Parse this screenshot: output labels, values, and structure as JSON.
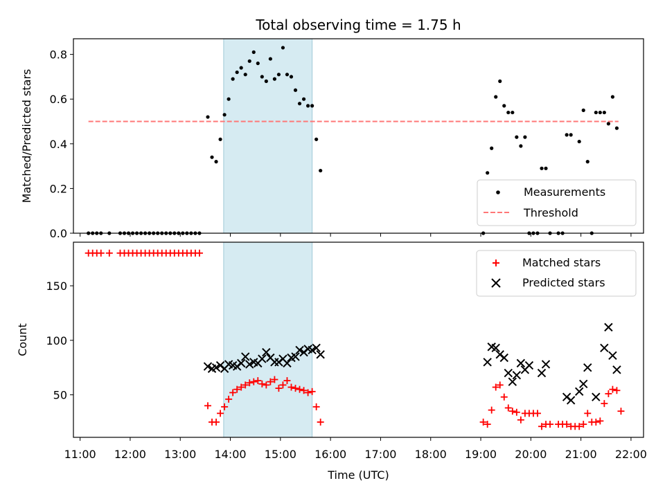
{
  "chart_data": [
    {
      "type": "scatter",
      "title": "Total observing time = 1.75 h",
      "xlabel": "",
      "ylabel": "Matched/Predicted stars",
      "xlim": [
        "10:52",
        "22:15"
      ],
      "ylim": [
        0,
        0.87
      ],
      "yticks": [
        0.0,
        0.2,
        0.4,
        0.6,
        0.8
      ],
      "ytick_labels": [
        "0.0",
        "0.2",
        "0.4",
        "0.6",
        "0.8"
      ],
      "grid": false,
      "legend_position": "lower-right",
      "shaded_span": [
        "13:52",
        "15:38"
      ],
      "series": [
        {
          "name": "Measurements",
          "marker": "dot",
          "color": "#000000",
          "points": [
            [
              "11:10",
              0
            ],
            [
              "11:15",
              0
            ],
            [
              "11:20",
              0
            ],
            [
              "11:25",
              0
            ],
            [
              "11:35",
              0
            ],
            [
              "11:48",
              0
            ],
            [
              "11:53",
              0
            ],
            [
              "11:58",
              0
            ],
            [
              "12:03",
              0
            ],
            [
              "12:08",
              0
            ],
            [
              "12:13",
              0
            ],
            [
              "12:18",
              0
            ],
            [
              "12:23",
              0
            ],
            [
              "12:28",
              0
            ],
            [
              "12:33",
              0
            ],
            [
              "12:38",
              0
            ],
            [
              "12:43",
              0
            ],
            [
              "12:48",
              0
            ],
            [
              "12:53",
              0
            ],
            [
              "12:58",
              0
            ],
            [
              "13:03",
              0
            ],
            [
              "13:08",
              0
            ],
            [
              "13:13",
              0
            ],
            [
              "13:18",
              0
            ],
            [
              "13:23",
              0
            ],
            [
              "13:33",
              0.52
            ],
            [
              "13:38",
              0.34
            ],
            [
              "13:43",
              0.32
            ],
            [
              "13:48",
              0.42
            ],
            [
              "13:53",
              0.53
            ],
            [
              "13:58",
              0.6
            ],
            [
              "14:03",
              0.69
            ],
            [
              "14:08",
              0.72
            ],
            [
              "14:13",
              0.74
            ],
            [
              "14:18",
              0.71
            ],
            [
              "14:23",
              0.77
            ],
            [
              "14:28",
              0.81
            ],
            [
              "14:33",
              0.76
            ],
            [
              "14:38",
              0.7
            ],
            [
              "14:43",
              0.68
            ],
            [
              "14:48",
              0.78
            ],
            [
              "14:53",
              0.69
            ],
            [
              "14:58",
              0.71
            ],
            [
              "15:03",
              0.83
            ],
            [
              "15:08",
              0.71
            ],
            [
              "15:13",
              0.7
            ],
            [
              "15:18",
              0.64
            ],
            [
              "15:23",
              0.58
            ],
            [
              "15:28",
              0.6
            ],
            [
              "15:33",
              0.57
            ],
            [
              "15:38",
              0.57
            ],
            [
              "15:43",
              0.42
            ],
            [
              "15:48",
              0.28
            ],
            [
              "19:03",
              0
            ],
            [
              "19:08",
              0.27
            ],
            [
              "19:13",
              0.38
            ],
            [
              "19:18",
              0.61
            ],
            [
              "19:23",
              0.68
            ],
            [
              "19:28",
              0.57
            ],
            [
              "19:33",
              0.54
            ],
            [
              "19:38",
              0.54
            ],
            [
              "19:43",
              0.43
            ],
            [
              "19:48",
              0.39
            ],
            [
              "19:53",
              0.43
            ],
            [
              "19:58",
              0
            ],
            [
              "20:03",
              0
            ],
            [
              "20:08",
              0
            ],
            [
              "20:13",
              0.29
            ],
            [
              "20:18",
              0.29
            ],
            [
              "20:23",
              0
            ],
            [
              "20:33",
              0
            ],
            [
              "20:38",
              0
            ],
            [
              "20:43",
              0.44
            ],
            [
              "20:48",
              0.44
            ],
            [
              "20:58",
              0.41
            ],
            [
              "21:03",
              0.55
            ],
            [
              "21:08",
              0.32
            ],
            [
              "21:13",
              0
            ],
            [
              "21:18",
              0.54
            ],
            [
              "21:23",
              0.54
            ],
            [
              "21:28",
              0.54
            ],
            [
              "21:33",
              0.49
            ],
            [
              "21:38",
              0.61
            ],
            [
              "21:43",
              0.47
            ]
          ]
        },
        {
          "name": "Threshold",
          "marker": "dashed-line",
          "color": "#ff7777",
          "points": [
            [
              "11:10",
              0.5
            ],
            [
              "21:45",
              0.5
            ]
          ]
        }
      ]
    },
    {
      "type": "scatter",
      "title": "",
      "xlabel": "Time (UTC)",
      "ylabel": "Count",
      "xlim": [
        "10:52",
        "22:15"
      ],
      "ylim": [
        11,
        190
      ],
      "yticks": [
        50,
        100,
        150
      ],
      "ytick_labels": [
        "50",
        "100",
        "150"
      ],
      "xtick_labels": [
        "11:00",
        "12:00",
        "13:00",
        "14:00",
        "15:00",
        "16:00",
        "17:00",
        "18:00",
        "19:00",
        "20:00",
        "21:00",
        "22:00"
      ],
      "grid": false,
      "legend_position": "upper-right",
      "shaded_span": [
        "13:52",
        "15:38"
      ],
      "series": [
        {
          "name": "Matched stars",
          "marker": "plus",
          "color": "#ff0000",
          "points": [
            [
              "11:10",
              180
            ],
            [
              "11:15",
              180
            ],
            [
              "11:20",
              180
            ],
            [
              "11:25",
              180
            ],
            [
              "11:35",
              180
            ],
            [
              "11:48",
              180
            ],
            [
              "11:53",
              180
            ],
            [
              "11:58",
              180
            ],
            [
              "12:03",
              180
            ],
            [
              "12:08",
              180
            ],
            [
              "12:13",
              180
            ],
            [
              "12:18",
              180
            ],
            [
              "12:23",
              180
            ],
            [
              "12:28",
              180
            ],
            [
              "12:33",
              180
            ],
            [
              "12:38",
              180
            ],
            [
              "12:43",
              180
            ],
            [
              "12:48",
              180
            ],
            [
              "12:53",
              180
            ],
            [
              "12:58",
              180
            ],
            [
              "13:03",
              180
            ],
            [
              "13:08",
              180
            ],
            [
              "13:13",
              180
            ],
            [
              "13:18",
              180
            ],
            [
              "13:23",
              180
            ],
            [
              "13:33",
              40
            ],
            [
              "13:38",
              25
            ],
            [
              "13:43",
              25
            ],
            [
              "13:48",
              33
            ],
            [
              "13:53",
              39
            ],
            [
              "13:58",
              46
            ],
            [
              "14:03",
              52
            ],
            [
              "14:08",
              55
            ],
            [
              "14:13",
              57
            ],
            [
              "14:18",
              59
            ],
            [
              "14:23",
              61
            ],
            [
              "14:28",
              62
            ],
            [
              "14:33",
              63
            ],
            [
              "14:38",
              60
            ],
            [
              "14:43",
              59
            ],
            [
              "14:48",
              62
            ],
            [
              "14:53",
              64
            ],
            [
              "14:58",
              56
            ],
            [
              "15:03",
              59
            ],
            [
              "15:08",
              63
            ],
            [
              "15:13",
              57
            ],
            [
              "15:18",
              56
            ],
            [
              "15:23",
              55
            ],
            [
              "15:28",
              54
            ],
            [
              "15:33",
              52
            ],
            [
              "15:38",
              53
            ],
            [
              "15:43",
              39
            ],
            [
              "15:48",
              25
            ],
            [
              "19:03",
              25
            ],
            [
              "19:08",
              23
            ],
            [
              "19:13",
              36
            ],
            [
              "19:18",
              57
            ],
            [
              "19:23",
              59
            ],
            [
              "19:28",
              48
            ],
            [
              "19:33",
              38
            ],
            [
              "19:38",
              35
            ],
            [
              "19:43",
              34
            ],
            [
              "19:48",
              27
            ],
            [
              "19:53",
              33
            ],
            [
              "19:58",
              33
            ],
            [
              "20:03",
              33
            ],
            [
              "20:08",
              33
            ],
            [
              "20:13",
              21
            ],
            [
              "20:18",
              23
            ],
            [
              "20:23",
              23
            ],
            [
              "20:33",
              23
            ],
            [
              "20:38",
              23
            ],
            [
              "20:43",
              23
            ],
            [
              "20:48",
              21
            ],
            [
              "20:53",
              21
            ],
            [
              "20:58",
              21
            ],
            [
              "21:03",
              23
            ],
            [
              "21:08",
              33
            ],
            [
              "21:13",
              25
            ],
            [
              "21:18",
              25
            ],
            [
              "21:23",
              26
            ],
            [
              "21:28",
              42
            ],
            [
              "21:33",
              51
            ],
            [
              "21:38",
              55
            ],
            [
              "21:43",
              54
            ],
            [
              "21:48",
              35
            ]
          ]
        },
        {
          "name": "Predicted stars",
          "marker": "x",
          "color": "#000000",
          "points": [
            [
              "13:33",
              76
            ],
            [
              "13:38",
              74
            ],
            [
              "13:43",
              75
            ],
            [
              "13:48",
              77
            ],
            [
              "13:53",
              74
            ],
            [
              "13:58",
              78
            ],
            [
              "14:03",
              77
            ],
            [
              "14:08",
              76
            ],
            [
              "14:13",
              79
            ],
            [
              "14:18",
              85
            ],
            [
              "14:23",
              78
            ],
            [
              "14:28",
              80
            ],
            [
              "14:33",
              79
            ],
            [
              "14:38",
              83
            ],
            [
              "14:43",
              89
            ],
            [
              "14:48",
              84
            ],
            [
              "14:53",
              80
            ],
            [
              "14:58",
              80
            ],
            [
              "15:03",
              83
            ],
            [
              "15:08",
              79
            ],
            [
              "15:13",
              84
            ],
            [
              "15:18",
              85
            ],
            [
              "15:23",
              91
            ],
            [
              "15:28",
              89
            ],
            [
              "15:33",
              92
            ],
            [
              "15:38",
              91
            ],
            [
              "15:43",
              93
            ],
            [
              "15:48",
              87
            ],
            [
              "19:08",
              80
            ],
            [
              "19:13",
              94
            ],
            [
              "19:18",
              93
            ],
            [
              "19:23",
              87
            ],
            [
              "19:28",
              84
            ],
            [
              "19:33",
              70
            ],
            [
              "19:38",
              62
            ],
            [
              "19:43",
              68
            ],
            [
              "19:48",
              79
            ],
            [
              "19:53",
              73
            ],
            [
              "19:58",
              77
            ],
            [
              "20:13",
              70
            ],
            [
              "20:18",
              78
            ],
            [
              "20:43",
              48
            ],
            [
              "20:48",
              45
            ],
            [
              "20:58",
              53
            ],
            [
              "21:03",
              60
            ],
            [
              "21:08",
              75
            ],
            [
              "21:18",
              48
            ],
            [
              "21:28",
              93
            ],
            [
              "21:33",
              112
            ],
            [
              "21:38",
              86
            ],
            [
              "21:43",
              73
            ]
          ]
        }
      ]
    }
  ]
}
